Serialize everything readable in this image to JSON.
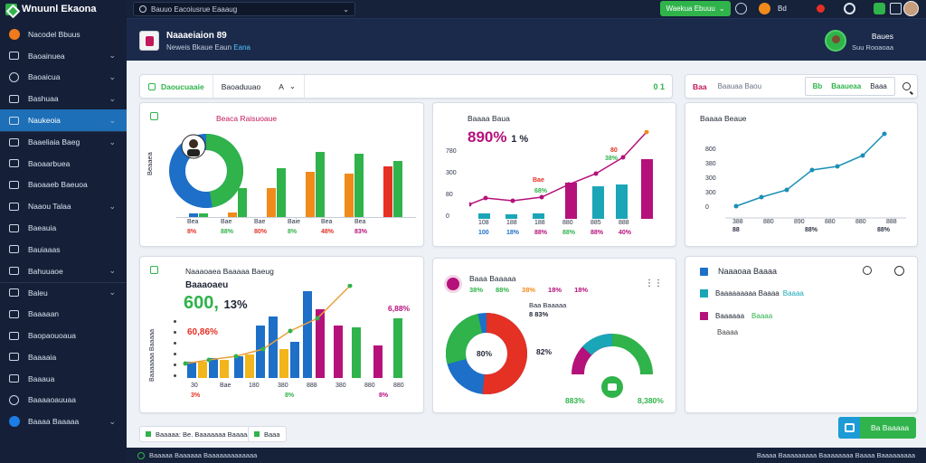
{
  "app": {
    "title": "Wnuunl Ekaona"
  },
  "topbar": {
    "search_text": "Bauuo Eacoiusrue Eaaaug",
    "green_button": "Waekua Ebuuu",
    "label_1": "Bd"
  },
  "header": {
    "title": "Naaaeiaion 89",
    "subtitle": "Neweis Bkaue Eaun",
    "subtitle_code": "Eana",
    "user_name": "Baues",
    "user_role": "Suu Rooaoaa"
  },
  "sidebar": {
    "items": [
      {
        "label": "Nacodel Bbuus",
        "icon": "orange-circle-icon",
        "chevron": false,
        "active": false
      },
      {
        "label": "Baoainuea",
        "icon": "grid-icon",
        "chevron": true,
        "active": false
      },
      {
        "label": "Baoaicua",
        "icon": "globe-icon",
        "chevron": true,
        "active": false
      },
      {
        "label": "Bashuaa",
        "icon": "box-icon",
        "chevron": true,
        "active": false
      },
      {
        "label": "Naukeoia",
        "icon": "chart-icon",
        "chevron": true,
        "active": true
      },
      {
        "label": "Baaeliaia Baeg",
        "icon": "link-icon",
        "chevron": true,
        "active": false
      },
      {
        "label": "Baoaarbuea",
        "icon": "person-icon",
        "chevron": false,
        "active": false
      },
      {
        "label": "Baoaaeb Baeuoa",
        "icon": "edit-icon",
        "chevron": false,
        "active": false
      },
      {
        "label": "Naaou Talaa",
        "icon": "doc-icon",
        "chevron": true,
        "active": false
      },
      {
        "label": "Baeauia",
        "icon": "wrench-icon",
        "chevron": false,
        "active": false
      },
      {
        "label": "Bauiaaas",
        "icon": "layers-icon",
        "chevron": false,
        "active": false
      },
      {
        "label": "Bahuuaoe",
        "icon": "pin-icon",
        "chevron": true,
        "active": false
      },
      {
        "label": "Baleu",
        "icon": "folder-icon",
        "chevron": true,
        "active": false
      },
      {
        "label": "Baaaaan",
        "icon": "image-icon",
        "chevron": false,
        "active": false
      },
      {
        "label": "Baopaouoaua",
        "icon": "share-icon",
        "chevron": false,
        "active": false
      },
      {
        "label": "Baaaaia",
        "icon": "card-icon",
        "chevron": false,
        "active": false
      },
      {
        "label": "Baaaua",
        "icon": "list-icon",
        "chevron": false,
        "active": false
      },
      {
        "label": "Baaaaoauuaa",
        "icon": "settings-icon",
        "chevron": false,
        "active": false
      },
      {
        "label": "Baaaa Baaaaa",
        "icon": "blue-circle-icon",
        "chevron": true,
        "active": false
      }
    ]
  },
  "filterbar": {
    "seg1": "Daoucuaaie",
    "seg2": "Baoaduuao",
    "seg3": "A",
    "right": "0 1"
  },
  "searchbar": {
    "tag": "Baa",
    "input_placeholder": "Baauaa Baou",
    "box_left": "Bb",
    "box_mid": "Baaueaa",
    "box_right": "Baaa"
  },
  "card1": {
    "title": "Beaca Raisuoaue",
    "side_label": "Beaaea",
    "x_labels": [
      "Bea",
      "Bae",
      "Bae",
      "Baie",
      "Bea",
      "Bea"
    ],
    "pct_labels": [
      "8%",
      "88%",
      "80%",
      "8%",
      "48%",
      "83%"
    ]
  },
  "card2": {
    "title": "Baaaa Baua",
    "big_value": "890%",
    "big_suffix": "1 %",
    "y_ticks": [
      "780",
      "300",
      "80",
      "0"
    ],
    "x_labels": [
      "108",
      "188",
      "188",
      "880",
      "885",
      "888"
    ],
    "pct_labels": [
      "100",
      "18%",
      "88%",
      "88%",
      "88%",
      "40%"
    ],
    "point_labels": [
      "Bae",
      "68%",
      "80",
      "38%"
    ]
  },
  "card3": {
    "title": "Baaaa Beaue",
    "y_ticks": [
      "800",
      "380",
      "300",
      "300",
      "0"
    ],
    "x_labels": [
      "388",
      "880",
      "890",
      "880",
      "880",
      "888"
    ],
    "pct_labels": [
      "88",
      "88%",
      "88%"
    ]
  },
  "card4": {
    "title": "Naaaoaea Baaaaa Baeug",
    "subtitle": "Baaaoaeu",
    "big_value": "600,",
    "big_suffix": "13%",
    "annot_left": "60,86%",
    "annot_right": "6,88%",
    "side_label": "Baaaaaaa Baaaaa",
    "x_labels": [
      "30",
      "Bae",
      "180",
      "380",
      "888",
      "380",
      "880",
      "880"
    ],
    "pct_labels": [
      "3%",
      "8%",
      "8%"
    ]
  },
  "card5": {
    "title": "Baaa Baaaaa",
    "legend": [
      "38%",
      "88%",
      "38%",
      "18%",
      "18%"
    ],
    "callout": "Baa Baaaaa",
    "callout_pct": "8 83%",
    "donut_center": "80%",
    "donut_side": "82%",
    "gauge_left": "883%",
    "gauge_right": "8,380%"
  },
  "card6": {
    "title": "Naaaoaa Baaaa",
    "item1": "Baaaaaaaaa Baaaa",
    "item1_tag": "Baaaa",
    "item2": "Baaaaaa",
    "item2_tag": "Baaaa",
    "item3": "Baaaa"
  },
  "bottom": {
    "chip1": "Baaaaa: Be. Baaaaaaa Baaaaaa",
    "chip2": "Baaa",
    "fab_label": "Ba Baaaaa"
  },
  "status": {
    "left": "Baaaaa Baaaaaa Baaaaaaaaaaaaa",
    "right": "Baaaa Baaaaaaaaa Baaaaaaaa Baaaa Baaaaaaaaa"
  },
  "colors": {
    "sidebar_bg": "#152038",
    "header_bg": "#1b2a4a",
    "active": "#1d6fb8",
    "green": "#2fb34a",
    "blue": "#1d6fc8",
    "orange": "#f08b1b",
    "red": "#e53024",
    "magenta": "#b5117a",
    "teal": "#1aa6b7"
  }
}
